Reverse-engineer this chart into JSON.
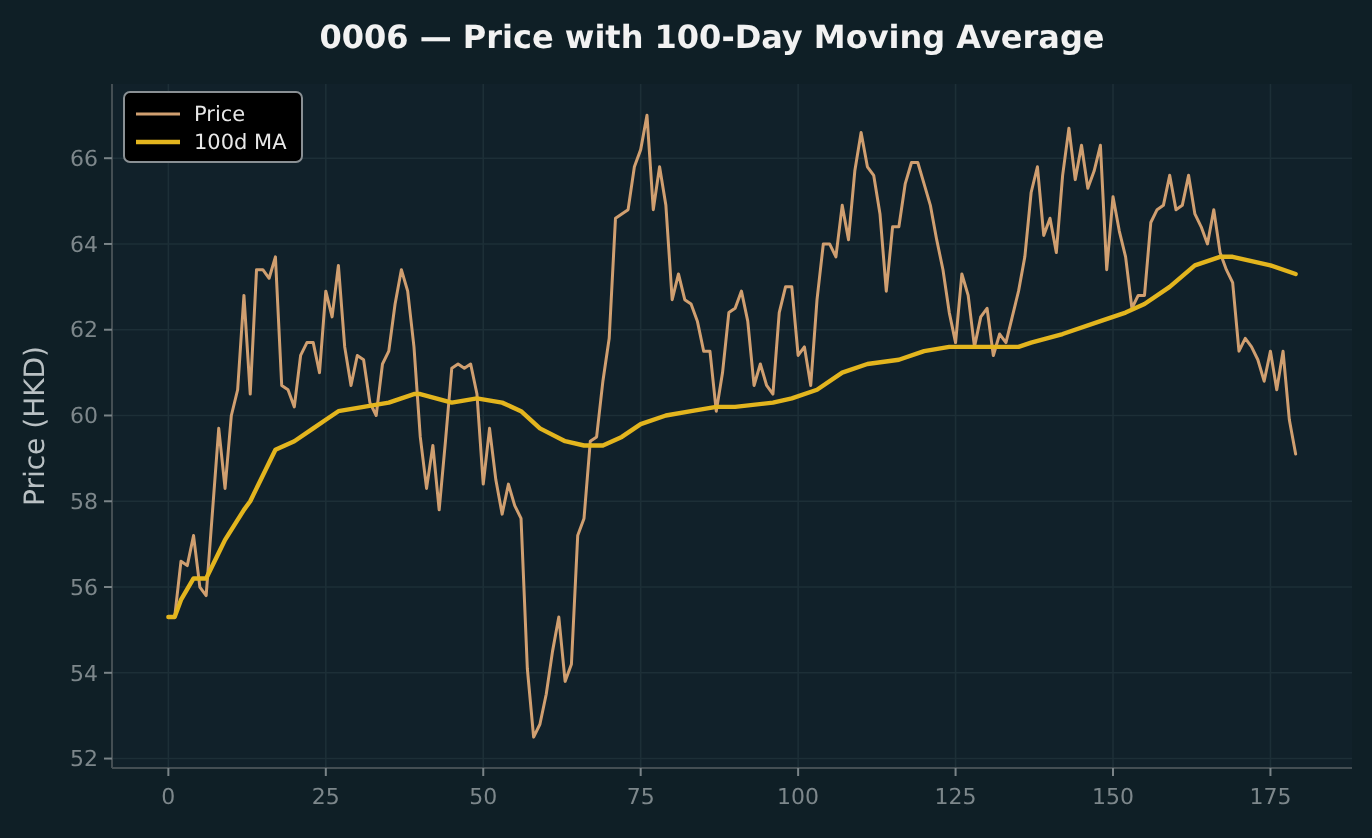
{
  "chart_data": {
    "type": "line",
    "title": "0006 — Price with 100-Day Moving Average",
    "ylabel": "Price (HKD)",
    "xlim": [
      -8.95,
      187.95
    ],
    "ylim": [
      51.78,
      67.73
    ],
    "xticks": [
      0,
      25,
      50,
      75,
      100,
      125,
      150,
      175
    ],
    "yticks": [
      52,
      54,
      56,
      58,
      60,
      62,
      64,
      66
    ],
    "grid": true,
    "legend": "top left",
    "series": [
      {
        "name": "Price",
        "color": "#d09f70",
        "x": [
          0,
          1,
          2,
          3,
          4,
          5,
          6,
          8,
          9,
          10,
          11,
          12,
          13,
          14,
          15,
          16,
          17,
          18,
          19,
          20,
          21,
          22,
          23,
          24,
          25,
          26,
          27,
          28,
          29,
          30,
          31,
          32,
          33,
          34,
          35,
          36,
          37,
          38,
          39,
          40,
          41,
          42,
          43,
          44,
          45,
          46,
          47,
          48,
          49,
          50,
          51,
          52,
          53,
          54,
          55,
          56,
          57,
          58,
          59,
          60,
          61,
          62,
          63,
          64,
          65,
          66,
          67,
          68,
          69,
          70,
          71,
          72,
          73,
          74,
          75,
          76,
          77,
          78,
          79,
          80,
          81,
          82,
          83,
          84,
          85,
          86,
          87,
          88,
          89,
          90,
          91,
          92,
          93,
          94,
          95,
          96,
          97,
          98,
          99,
          100,
          101,
          102,
          103,
          104,
          105,
          106,
          107,
          108,
          109,
          110,
          111,
          112,
          113,
          114,
          115,
          116,
          117,
          118,
          119,
          120,
          121,
          122,
          123,
          124,
          125,
          126,
          127,
          128,
          129,
          130,
          131,
          132,
          133,
          134,
          135,
          136,
          137,
          138,
          139,
          140,
          141,
          142,
          143,
          144,
          145,
          146,
          147,
          148,
          149,
          150,
          151,
          152,
          153,
          154,
          155,
          156,
          157,
          158,
          159,
          160,
          161,
          162,
          163,
          164,
          165,
          166,
          167,
          168,
          169,
          170,
          171,
          172,
          173,
          174,
          175,
          176,
          177,
          178,
          179
        ],
        "values": [
          55.3,
          55.3,
          56.6,
          56.5,
          57.2,
          56.0,
          55.8,
          59.7,
          58.3,
          60.0,
          60.6,
          62.8,
          60.5,
          63.4,
          63.4,
          63.2,
          63.7,
          60.7,
          60.6,
          60.2,
          61.4,
          61.7,
          61.7,
          61.0,
          62.9,
          62.3,
          63.5,
          61.6,
          60.7,
          61.4,
          61.3,
          60.3,
          60.0,
          61.2,
          61.5,
          62.6,
          63.4,
          62.9,
          61.6,
          59.5,
          58.3,
          59.3,
          57.8,
          59.4,
          61.1,
          61.2,
          61.1,
          61.2,
          60.5,
          58.4,
          59.7,
          58.5,
          57.7,
          58.4,
          57.9,
          57.6,
          54.1,
          52.5,
          52.8,
          53.5,
          54.5,
          55.3,
          53.8,
          54.2,
          57.2,
          57.6,
          59.4,
          59.5,
          60.8,
          61.8,
          64.6,
          64.7,
          64.8,
          65.8,
          66.2,
          67.0,
          64.8,
          65.8,
          64.9,
          62.7,
          63.3,
          62.7,
          62.6,
          62.2,
          61.5,
          61.5,
          60.1,
          61.0,
          62.4,
          62.5,
          62.9,
          62.2,
          60.7,
          61.2,
          60.7,
          60.5,
          62.4,
          63.0,
          63.0,
          61.4,
          61.6,
          60.7,
          62.7,
          64.0,
          64.0,
          63.7,
          64.9,
          64.1,
          65.7,
          66.6,
          65.8,
          65.6,
          64.7,
          62.9,
          64.4,
          64.4,
          65.4,
          65.9,
          65.9,
          65.4,
          64.9,
          64.1,
          63.4,
          62.4,
          61.7,
          63.3,
          62.8,
          61.6,
          62.3,
          62.5,
          61.4,
          61.9,
          61.7,
          62.3,
          62.9,
          63.7,
          65.2,
          65.8,
          64.2,
          64.6,
          63.8,
          65.6,
          66.7,
          65.5,
          66.3,
          65.3,
          65.7,
          66.3,
          63.4,
          65.1,
          64.3,
          63.7,
          62.5,
          62.8,
          62.8,
          64.5,
          64.8,
          64.9,
          65.6,
          64.8,
          64.9,
          65.6,
          64.7,
          64.4,
          64.0,
          64.8,
          63.8,
          63.4,
          63.1,
          61.5,
          61.8,
          61.6,
          61.3,
          60.8,
          61.5,
          60.6,
          61.5,
          59.9,
          59.1
        ]
      },
      {
        "name": "100d MA",
        "color": "#e3b51e",
        "x": [
          0,
          1,
          2,
          4,
          6,
          8,
          9,
          12,
          13,
          15,
          17,
          20,
          23,
          25,
          27,
          31,
          35,
          39,
          40,
          45,
          49,
          53,
          56,
          59,
          63,
          66,
          69,
          72,
          75,
          79,
          83,
          87,
          90,
          96,
          99,
          103,
          107,
          111,
          116,
          120,
          124,
          131,
          135,
          137,
          142,
          148,
          152,
          155,
          159,
          163,
          167,
          169,
          172,
          175,
          179
        ],
        "values": [
          55.3,
          55.3,
          55.7,
          56.2,
          56.2,
          56.8,
          57.1,
          57.8,
          58.0,
          58.6,
          59.2,
          59.4,
          59.7,
          59.9,
          60.1,
          60.2,
          60.3,
          60.5,
          60.5,
          60.3,
          60.4,
          60.3,
          60.1,
          59.7,
          59.4,
          59.3,
          59.3,
          59.5,
          59.8,
          60.0,
          60.1,
          60.2,
          60.2,
          60.3,
          60.4,
          60.6,
          61.0,
          61.2,
          61.3,
          61.5,
          61.6,
          61.6,
          61.6,
          61.7,
          61.9,
          62.2,
          62.4,
          62.6,
          63.0,
          63.5,
          63.7,
          63.7,
          63.6,
          63.5,
          63.3
        ]
      }
    ]
  }
}
